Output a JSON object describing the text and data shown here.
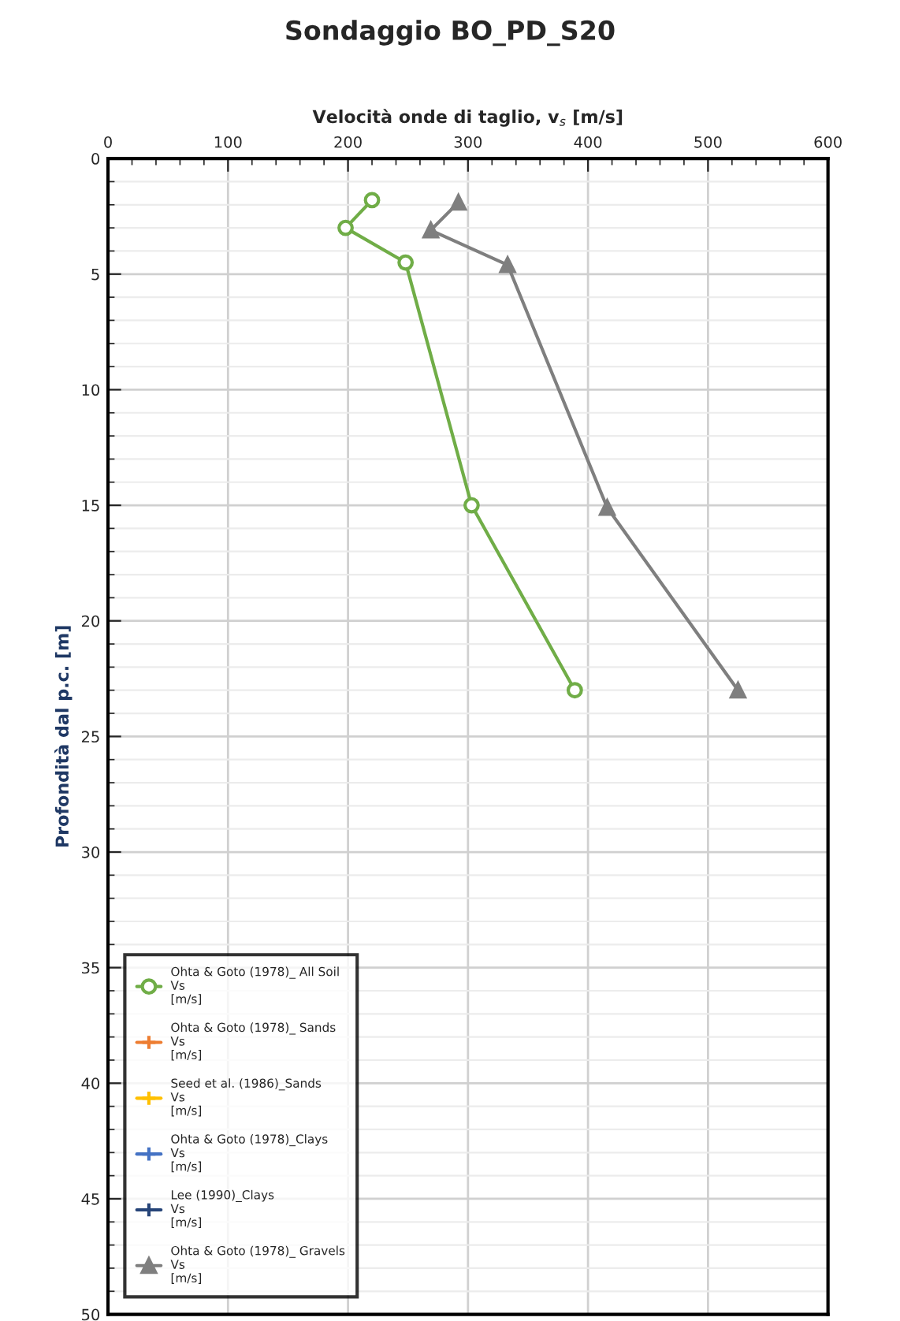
{
  "chart_data": {
    "type": "line",
    "title": "Sondaggio BO_PD_S20",
    "xlabel": "Velocità onde di taglio, v$_{s}$ [m/s]",
    "ylabel": "Profondità dal p.c. [m]",
    "orientation": "horizontal",
    "xlim": [
      0,
      600
    ],
    "xticks": [
      0,
      100,
      200,
      300,
      400,
      500,
      600
    ],
    "ylim": [
      50,
      0
    ],
    "yticks": [
      0,
      5,
      10,
      15,
      20,
      25,
      30,
      35,
      40,
      45,
      50
    ],
    "grid": true,
    "legend": "bottom left",
    "series": [
      {
        "name": "Ohta & Goto (1978)_ All Soil\nVs\n[m/s]",
        "color": "#70ad47",
        "marker": "circle",
        "x": [
          1.8,
          3,
          4.5,
          15,
          23
        ],
        "values": [
          220,
          198,
          248,
          303,
          389
        ]
      },
      {
        "name": "Ohta & Goto (1978)_ Sands\nVs\n[m/s]",
        "color": "#ed7d31",
        "marker": "cross"
      },
      {
        "name": "Seed et al. (1986)_Sands\nVs\n[m/s]",
        "color": "#ffc000",
        "marker": "cross"
      },
      {
        "name": "Ohta & Goto (1978)_Clays\nVs\n[m/s]",
        "color": "#4472c4",
        "marker": "cross"
      },
      {
        "name": "Lee (1990)_Clays\nVs\n[m/s]",
        "color": "#264478",
        "marker": "cross"
      },
      {
        "name": "Ohta & Goto (1978)_ Gravels\nVs\n[m/s]",
        "color": "#7f7f7f",
        "marker": "triangle",
        "x": [
          1.9,
          3.1,
          4.6,
          15.1,
          23
        ],
        "values": [
          292,
          269,
          333,
          416,
          525
        ]
      }
    ]
  }
}
